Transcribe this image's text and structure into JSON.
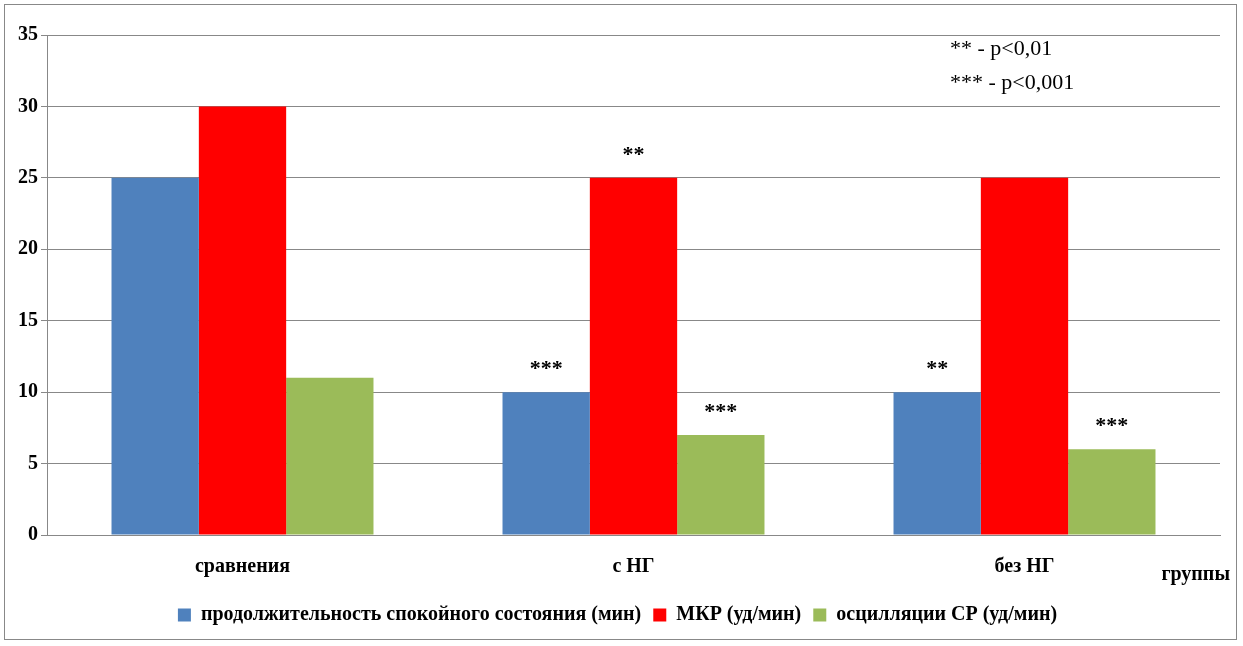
{
  "chart_data": {
    "type": "bar",
    "xlabel": "группы",
    "categories": [
      "сравнения",
      "с НГ",
      "без НГ"
    ],
    "series": [
      {
        "name": "продолжительность спокойного состояния (мин)",
        "color": "#4f81bd",
        "values": [
          25,
          10,
          10
        ]
      },
      {
        "name": "МКР (уд/мин)",
        "color": "#ff0000",
        "values": [
          30,
          25,
          25
        ]
      },
      {
        "name": "осцилляции СР (уд/мин)",
        "color": "#9bbb59",
        "values": [
          11,
          7,
          6
        ]
      }
    ],
    "ylim": [
      0,
      35
    ],
    "yticks": [
      0,
      5,
      10,
      15,
      20,
      25,
      30,
      35
    ],
    "grid": "y",
    "legend": "bottom",
    "annotations": [
      "** - p<0,01",
      "*** - p<0,001",
      "**",
      "***",
      "***",
      "**",
      "***"
    ]
  }
}
